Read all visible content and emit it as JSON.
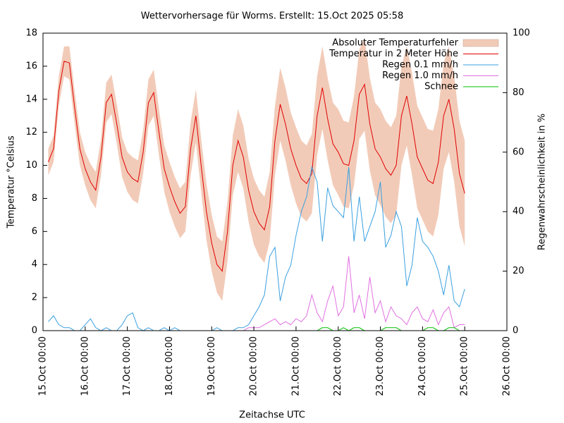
{
  "chart_data": {
    "type": "line",
    "title": "Wettervorhersage für Worms. Erstellt: 15.Oct 2025 05:58",
    "x_label": "Zeitachse UTC",
    "y_label": "Temperatur °Celsius",
    "y2_label": "Regenwahrscheinlichkeit in %",
    "xlim": [
      0,
      11
    ],
    "xticks": [
      {
        "value": 0,
        "label": "15.Oct 00:00"
      },
      {
        "value": 1,
        "label": "16.Oct 00:00"
      },
      {
        "value": 2,
        "label": "17.Oct 00:00"
      },
      {
        "value": 3,
        "label": "18.Oct 00:00"
      },
      {
        "value": 4,
        "label": "19.Oct 00:00"
      },
      {
        "value": 5,
        "label": "20.Oct 00:00"
      },
      {
        "value": 6,
        "label": "21.Oct 00:00"
      },
      {
        "value": 7,
        "label": "22.Oct 00:00"
      },
      {
        "value": 8,
        "label": "23.Oct 00:00"
      },
      {
        "value": 9,
        "label": "24.Oct 00:00"
      },
      {
        "value": 10,
        "label": "25.Oct 00:00"
      },
      {
        "value": 11,
        "label": "26.Oct 00:00"
      }
    ],
    "ylim": [
      0,
      18
    ],
    "yticks": [
      0,
      2,
      4,
      6,
      8,
      10,
      12,
      14,
      16,
      18
    ],
    "y2lim": [
      0,
      100
    ],
    "y2ticks": [
      0,
      20,
      40,
      60,
      80,
      100
    ],
    "legend": "top-right",
    "x": [
      0.125,
      0.25,
      0.375,
      0.5,
      0.625,
      0.75,
      0.875,
      1,
      1.125,
      1.25,
      1.375,
      1.5,
      1.625,
      1.75,
      1.875,
      2,
      2.125,
      2.25,
      2.375,
      2.5,
      2.625,
      2.75,
      2.875,
      3,
      3.125,
      3.25,
      3.375,
      3.5,
      3.625,
      3.75,
      3.875,
      4,
      4.125,
      4.25,
      4.375,
      4.5,
      4.625,
      4.75,
      4.875,
      5,
      5.125,
      5.25,
      5.375,
      5.5,
      5.625,
      5.75,
      5.875,
      6,
      6.125,
      6.25,
      6.375,
      6.5,
      6.625,
      6.75,
      6.875,
      7,
      7.125,
      7.25,
      7.375,
      7.5,
      7.625,
      7.75,
      7.875,
      8,
      8.125,
      8.25,
      8.375,
      8.5,
      8.625,
      8.75,
      8.875,
      9,
      9.125,
      9.25,
      9.375,
      9.5,
      9.625,
      9.75,
      9.875,
      10
    ],
    "series": [
      {
        "name": "Absoluter Temperaturfehler",
        "style": "band",
        "color": "#f2cbb8",
        "values": [
          0.8,
          0.8,
          0.9,
          0.9,
          1.0,
          1.0,
          1.0,
          1.0,
          1.1,
          1.1,
          1.1,
          1.2,
          1.2,
          1.2,
          1.2,
          1.2,
          1.3,
          1.3,
          1.3,
          1.4,
          1.4,
          1.4,
          1.4,
          1.5,
          1.5,
          1.5,
          1.5,
          1.6,
          1.6,
          1.6,
          1.7,
          1.7,
          1.7,
          1.8,
          1.8,
          1.8,
          1.9,
          1.9,
          1.9,
          2.0,
          2.0,
          2.0,
          2.1,
          2.1,
          2.2,
          2.2,
          2.2,
          2.3,
          2.3,
          2.3,
          2.4,
          2.4,
          2.5,
          2.5,
          2.5,
          2.6,
          2.6,
          2.6,
          2.7,
          2.7,
          2.8,
          2.8,
          2.8,
          2.9,
          2.9,
          2.9,
          3.0,
          3.0,
          3.0,
          3.1,
          3.1,
          3.1,
          3.1,
          3.2,
          3.2,
          3.2,
          3.2,
          3.2,
          3.2,
          3.2
        ]
      },
      {
        "name": "Temperatur in 2 Meter Höhe",
        "style": "line",
        "color": "#e00000",
        "values": [
          10.2,
          11.0,
          14.5,
          16.3,
          16.2,
          13.5,
          11.0,
          9.8,
          9.0,
          8.5,
          10.5,
          13.8,
          14.3,
          12.5,
          10.5,
          9.6,
          9.2,
          9.0,
          10.8,
          13.8,
          14.4,
          12.0,
          9.8,
          8.7,
          7.8,
          7.1,
          7.5,
          11.0,
          13.0,
          10.0,
          7.2,
          5.3,
          4.0,
          3.6,
          6.0,
          10.0,
          11.5,
          10.5,
          8.5,
          7.2,
          6.5,
          6.1,
          7.5,
          11.5,
          13.7,
          12.5,
          11.0,
          10.0,
          9.2,
          8.9,
          9.5,
          13.0,
          14.7,
          12.8,
          11.3,
          10.8,
          10.1,
          10.0,
          11.5,
          14.3,
          14.9,
          12.5,
          11.0,
          10.5,
          9.8,
          9.4,
          10.0,
          13.0,
          14.2,
          12.5,
          10.5,
          9.8,
          9.1,
          8.9,
          10.2,
          13.0,
          14.0,
          12.2,
          9.5,
          8.3
        ]
      },
      {
        "name": "Regen 0.1 mm/h",
        "style": "line",
        "axis": "y2",
        "color": "#3aa0e0",
        "values": [
          3,
          5,
          2,
          1,
          1,
          0,
          0,
          2,
          4,
          1,
          0,
          1,
          0,
          0,
          2,
          5,
          6,
          1,
          0,
          1,
          0,
          0,
          1,
          0,
          1,
          0,
          0,
          0,
          0,
          0,
          0,
          0,
          1,
          0,
          0,
          0,
          1,
          1,
          2,
          5,
          8,
          12,
          25,
          28,
          10,
          18,
          22,
          32,
          40,
          45,
          55,
          50,
          30,
          48,
          42,
          40,
          38,
          55,
          30,
          45,
          30,
          35,
          40,
          50,
          28,
          32,
          40,
          35,
          15,
          22,
          38,
          30,
          28,
          25,
          20,
          12,
          22,
          10,
          8,
          14
        ]
      },
      {
        "name": "Regen 1.0 mm/h",
        "style": "line",
        "axis": "y2",
        "color": "#e070e0",
        "values": [
          0,
          0,
          0,
          0,
          0,
          0,
          0,
          0,
          0,
          0,
          0,
          0,
          0,
          0,
          0,
          0,
          0,
          0,
          0,
          0,
          0,
          0,
          0,
          0,
          0,
          0,
          0,
          0,
          0,
          0,
          0,
          0,
          0,
          0,
          0,
          0,
          0,
          0,
          1,
          1,
          1,
          2,
          3,
          4,
          2,
          3,
          2,
          4,
          3,
          5,
          12,
          6,
          3,
          10,
          15,
          5,
          8,
          25,
          6,
          12,
          4,
          18,
          6,
          10,
          3,
          8,
          5,
          4,
          2,
          6,
          8,
          4,
          3,
          7,
          2,
          6,
          8,
          1,
          2,
          2
        ]
      },
      {
        "name": "Schnee",
        "style": "line",
        "axis": "y2",
        "color": "#00c000",
        "values": [
          0,
          0,
          0,
          0,
          0,
          0,
          0,
          0,
          0,
          0,
          0,
          0,
          0,
          0,
          0,
          0,
          0,
          0,
          0,
          0,
          0,
          0,
          0,
          0,
          0,
          0,
          0,
          0,
          0,
          0,
          0,
          0,
          0,
          0,
          0,
          0,
          0,
          0,
          0,
          0,
          0,
          0,
          0,
          0,
          0,
          0,
          0,
          0,
          0,
          0,
          0,
          0,
          1,
          1,
          0,
          0,
          1,
          0,
          1,
          1,
          0,
          0,
          0,
          0,
          1,
          1,
          1,
          0,
          0,
          0,
          0,
          0,
          1,
          1,
          0,
          0,
          1,
          1,
          0,
          0
        ]
      }
    ]
  }
}
